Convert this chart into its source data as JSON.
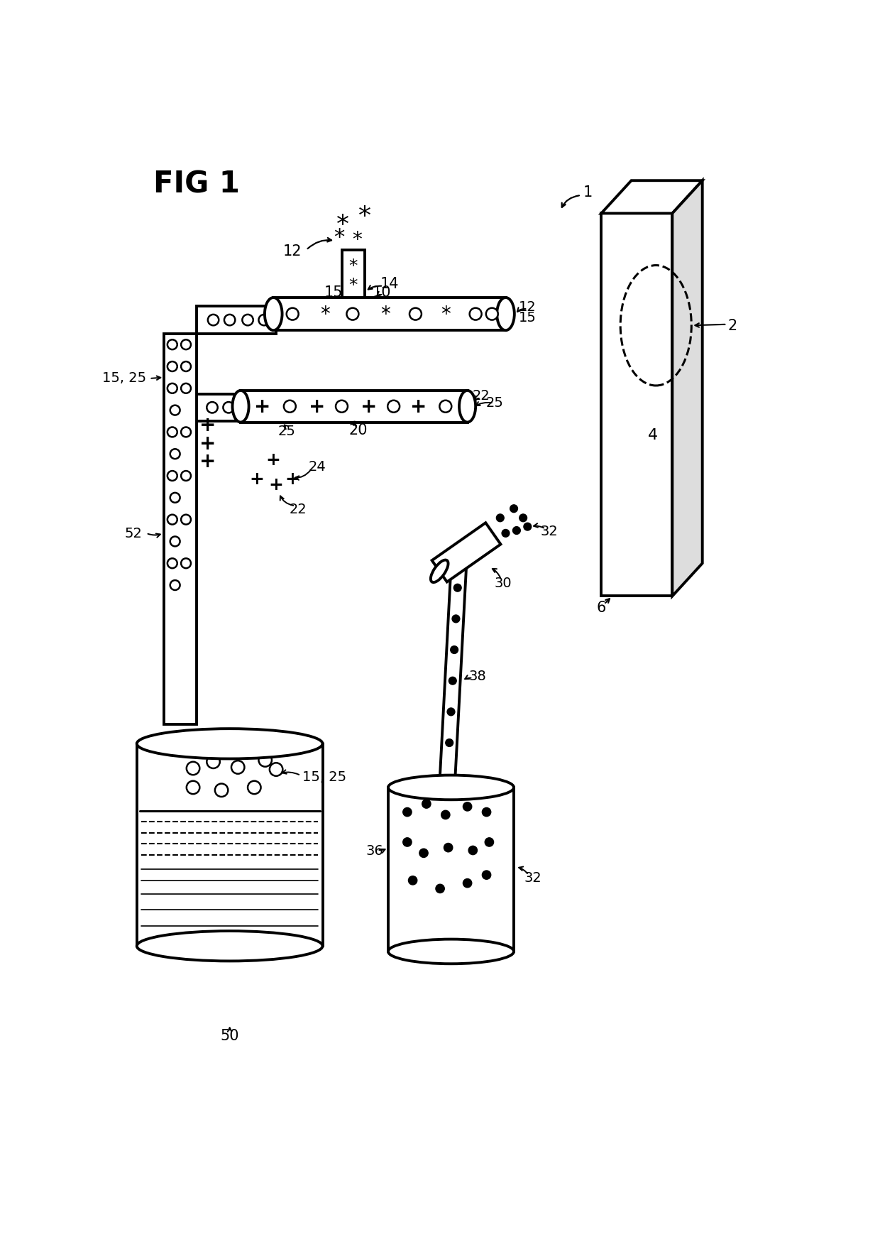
{
  "title": "FIG 1",
  "bg_color": "#ffffff",
  "line_color": "#000000",
  "fig_width": 12.4,
  "fig_height": 17.74
}
